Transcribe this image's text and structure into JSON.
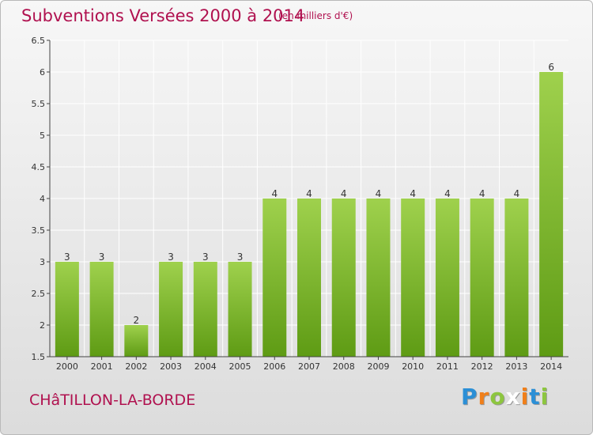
{
  "header": {
    "title": "Subventions Versées 2000 à 2014",
    "unit": "(en milliers d'€)"
  },
  "footer": {
    "town": "CHâTILLON-LA-BORDE",
    "logo_letters": [
      "P",
      "r",
      "o",
      "x",
      "i",
      "t",
      "i"
    ],
    "logo_colors": [
      "#2b8fd6",
      "#f07f1a",
      "#8dc63f",
      "#ffffff",
      "#f07f1a",
      "#2b8fd6",
      "#8dc63f"
    ]
  },
  "colors": {
    "bar_top": "#9fd14d",
    "bar_bottom": "#5e9b14",
    "accent": "#b0114f",
    "axis": "#444444",
    "grid": "#ffffff"
  },
  "chart_data": {
    "type": "bar",
    "categories": [
      "2000",
      "2001",
      "2002",
      "2003",
      "2004",
      "2005",
      "2006",
      "2007",
      "2008",
      "2009",
      "2010",
      "2011",
      "2012",
      "2013",
      "2014"
    ],
    "values": [
      3,
      3,
      2,
      3,
      3,
      3,
      4,
      4,
      4,
      4,
      4,
      4,
      4,
      4,
      6
    ],
    "data_labels": [
      "3",
      "3",
      "2",
      "3",
      "3",
      "3",
      "4",
      "4",
      "4",
      "4",
      "4",
      "4",
      "4",
      "4",
      "6"
    ],
    "title": "Subventions Versées 2000 à 2014",
    "xlabel": "",
    "ylabel": "",
    "ylim": [
      1.5,
      6.5
    ],
    "yticks": [
      1.5,
      2,
      2.5,
      3,
      3.5,
      4,
      4.5,
      5,
      5.5,
      6,
      6.5
    ],
    "ytick_labels": [
      "1.5",
      "2",
      "2.5",
      "3",
      "3.5",
      "4",
      "4.5",
      "5",
      "5.5",
      "6",
      "6.5"
    ],
    "grid": true
  }
}
